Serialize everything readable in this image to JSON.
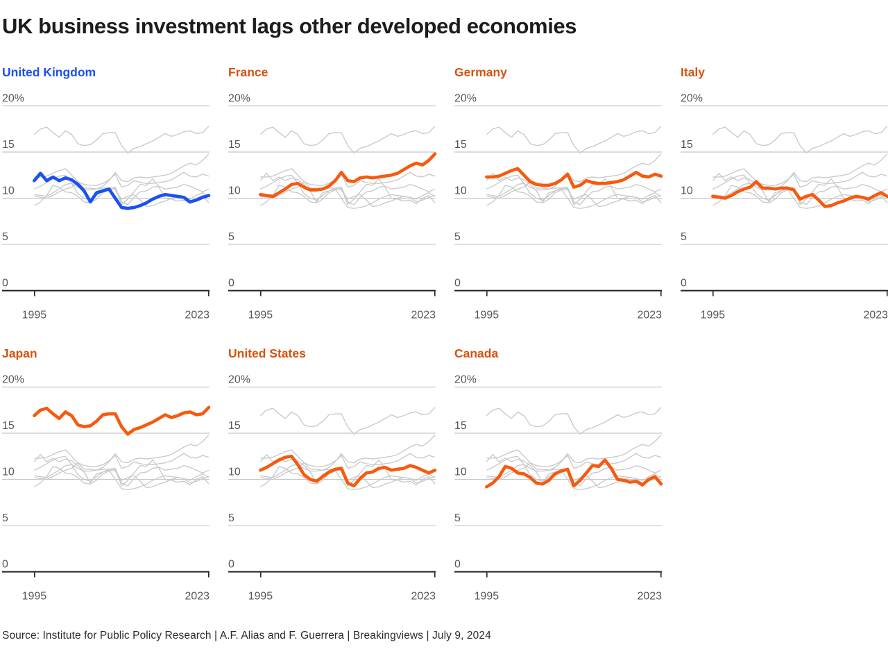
{
  "header": {
    "title": "UK business investment lags other developed economies"
  },
  "footer": {
    "source_line": "Source: Institute for Public Policy Research | A.F. Alias and F. Guerrera | Breakingviews | July 9, 2024"
  },
  "colors": {
    "title_text": "#1c1c1f",
    "tick_text": "#55575b",
    "gridline": "#c7c8ca",
    "axis": "#232326",
    "context_line": "#c9cacc",
    "highlight_uk": "#1a51f0",
    "highlight_other": "#f65a0e",
    "panel_label_uk": "#1a51f0",
    "panel_label_other": "#d35410"
  },
  "chart_data": {
    "type": "line",
    "layout": "small-multiples",
    "title": "UK business investment lags other developed economies",
    "y_ticks": [
      "20%",
      "15",
      "10",
      "5",
      "0"
    ],
    "x_ticks": [
      "1995",
      "2023"
    ],
    "ylim": [
      0,
      20
    ],
    "grid": true,
    "years": [
      1995,
      1996,
      1997,
      1998,
      1999,
      2000,
      2001,
      2002,
      2003,
      2004,
      2005,
      2006,
      2007,
      2008,
      2009,
      2010,
      2011,
      2012,
      2013,
      2014,
      2015,
      2016,
      2017,
      2018,
      2019,
      2020,
      2021,
      2022,
      2023
    ],
    "panels": [
      {
        "label": "United Kingdom",
        "series": "United Kingdom",
        "highlight": "#1a51f0",
        "label_color": "#1a51f0"
      },
      {
        "label": "France",
        "series": "France",
        "highlight": "#f65a0e",
        "label_color": "#d35410"
      },
      {
        "label": "Germany",
        "series": "Germany",
        "highlight": "#f65a0e",
        "label_color": "#d35410"
      },
      {
        "label": "Italy",
        "series": "Italy",
        "highlight": "#f65a0e",
        "label_color": "#d35410"
      },
      {
        "label": "Japan",
        "series": "Japan",
        "highlight": "#f65a0e",
        "label_color": "#d35410"
      },
      {
        "label": "United States",
        "series": "United States",
        "highlight": "#f65a0e",
        "label_color": "#d35410"
      },
      {
        "label": "Canada",
        "series": "Canada",
        "highlight": "#f65a0e",
        "label_color": "#d35410"
      }
    ],
    "series": [
      {
        "name": "United Kingdom",
        "values": [
          11.9,
          12.7,
          11.9,
          12.3,
          11.9,
          12.2,
          12.0,
          11.5,
          10.8,
          9.6,
          10.6,
          10.8,
          11.0,
          10.0,
          9.0,
          8.9,
          9.0,
          9.2,
          9.5,
          9.9,
          10.2,
          10.4,
          10.3,
          10.2,
          10.1,
          9.6,
          9.8,
          10.1,
          10.3
        ]
      },
      {
        "name": "France",
        "values": [
          10.4,
          10.3,
          10.2,
          10.6,
          11.0,
          11.5,
          11.6,
          11.2,
          10.9,
          10.9,
          11.0,
          11.3,
          11.9,
          12.8,
          11.9,
          11.8,
          12.2,
          12.3,
          12.2,
          12.3,
          12.4,
          12.5,
          12.7,
          13.1,
          13.5,
          13.8,
          13.6,
          14.1,
          14.8
        ]
      },
      {
        "name": "Germany",
        "values": [
          12.3,
          12.3,
          12.4,
          12.7,
          13.0,
          13.2,
          12.5,
          11.8,
          11.5,
          11.4,
          11.4,
          11.6,
          12.0,
          12.6,
          11.2,
          11.4,
          11.9,
          11.7,
          11.6,
          11.6,
          11.7,
          11.8,
          12.0,
          12.4,
          12.8,
          12.4,
          12.3,
          12.6,
          12.4
        ]
      },
      {
        "name": "Italy",
        "values": [
          10.2,
          10.1,
          10.0,
          10.3,
          10.7,
          11.0,
          11.2,
          11.8,
          11.1,
          11.1,
          11.0,
          11.1,
          11.1,
          10.9,
          9.9,
          10.2,
          10.4,
          9.8,
          9.1,
          9.2,
          9.5,
          9.7,
          10.0,
          10.2,
          10.1,
          9.9,
          10.3,
          10.6,
          10.2
        ]
      },
      {
        "name": "Japan",
        "values": [
          16.9,
          17.5,
          17.7,
          17.1,
          16.6,
          17.3,
          16.9,
          15.9,
          15.7,
          15.8,
          16.3,
          17.0,
          17.1,
          17.1,
          15.7,
          14.9,
          15.4,
          15.6,
          15.9,
          16.2,
          16.6,
          17.0,
          16.7,
          16.9,
          17.2,
          17.3,
          17.0,
          17.1,
          17.8
        ]
      },
      {
        "name": "United States",
        "values": [
          11.0,
          11.3,
          11.7,
          12.1,
          12.4,
          12.5,
          11.6,
          10.5,
          10.0,
          9.8,
          10.3,
          10.8,
          11.1,
          11.2,
          9.6,
          9.3,
          10.1,
          10.7,
          10.8,
          11.2,
          11.3,
          11.0,
          11.1,
          11.2,
          11.5,
          11.3,
          11.0,
          10.7,
          11.0
        ]
      },
      {
        "name": "Canada",
        "values": [
          9.2,
          9.6,
          10.3,
          11.4,
          11.2,
          10.7,
          10.6,
          10.2,
          9.6,
          9.5,
          9.9,
          10.6,
          10.9,
          11.1,
          9.3,
          9.9,
          10.7,
          11.5,
          11.4,
          12.1,
          11.2,
          10.0,
          9.9,
          9.7,
          9.8,
          9.4,
          10.0,
          10.3,
          9.5
        ]
      }
    ]
  }
}
